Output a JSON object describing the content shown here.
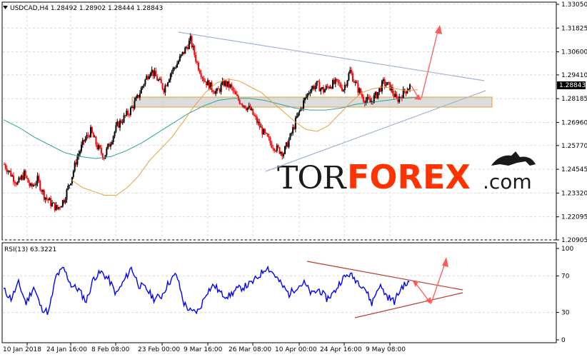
{
  "chart_header": {
    "symbol_line": "USDCAD,H4  1.28492 1.28902 1.28444 1.28843",
    "collapse_arrow_icon": "triangle-down-icon"
  },
  "price_axis": {
    "ticks": [
      "1.33050",
      "1.31825",
      "1.30600",
      "1.29410",
      "1.28185",
      "1.26960",
      "1.25770",
      "1.24545",
      "1.23320",
      "1.22095",
      "1.20905"
    ],
    "current_price": "1.28843"
  },
  "rsi_header": "RSI(13) 63.3221",
  "rsi_axis": {
    "ticks": [
      "100",
      "70",
      "30",
      "0"
    ]
  },
  "time_axis": {
    "labels": [
      "10 Jan 2018",
      "24 Jan 16:00",
      "8 Feb 08:00",
      "23 Feb 00:00",
      "9 Mar 16:00",
      "26 Mar 08:00",
      "10 Apr 00:00",
      "24 Apr 16:00",
      "9 May 08:00"
    ]
  },
  "watermark": {
    "part1": "TOR",
    "part2": "FOREX",
    "part3": ".com",
    "logo_icon": "bull-bear-icon"
  },
  "colors": {
    "candle_up": "#000000",
    "candle_down": "#ff0000",
    "ma_fast": "#e6a23c",
    "ma_slow": "#26a69a",
    "rsi_line": "#0000ff",
    "trendline": "#a0b4d0",
    "rsi_trendline": "#c0392b",
    "arrow": "#ff5a5a",
    "zone": "#d0d0d0",
    "zone_border": "#e6a23c",
    "grid": "#d8d8d8",
    "watermark_dark": "#1a1a1a",
    "watermark_accent": "#ff3300"
  },
  "chart_data": [
    {
      "type": "line",
      "title": "USDCAD,H4  1.28492 1.28902 1.28444 1.28843",
      "x": [
        "10 Jan 2018",
        "24 Jan 16:00",
        "8 Feb 08:00",
        "23 Feb 00:00",
        "9 Mar 16:00",
        "26 Mar 08:00",
        "10 Apr 00:00",
        "24 Apr 16:00",
        "9 May 08:00"
      ],
      "series": [
        {
          "name": "close",
          "values": [
            1.245,
            1.228,
            1.25,
            1.275,
            1.31,
            1.29,
            1.255,
            1.285,
            1.28
          ]
        }
      ],
      "close_path": [
        1.248,
        1.243,
        1.238,
        1.243,
        1.236,
        1.24,
        1.232,
        1.228,
        1.225,
        1.23,
        1.24,
        1.252,
        1.26,
        1.265,
        1.257,
        1.252,
        1.26,
        1.268,
        1.272,
        1.276,
        1.282,
        1.29,
        1.297,
        1.292,
        1.287,
        1.295,
        1.3,
        1.306,
        1.312,
        1.3,
        1.292,
        1.288,
        1.285,
        1.29,
        1.288,
        1.282,
        1.279,
        1.276,
        1.27,
        1.264,
        1.259,
        1.256,
        1.254,
        1.262,
        1.272,
        1.28,
        1.287,
        1.289,
        1.286,
        1.289,
        1.29,
        1.287,
        1.296,
        1.288,
        1.282,
        1.28,
        1.284,
        1.29,
        1.288,
        1.281,
        1.285,
        1.2884
      ],
      "ma_fast": [
        1.24,
        1.236,
        1.234,
        1.232,
        1.232,
        1.236,
        1.242,
        1.25,
        1.256,
        1.262,
        1.27,
        1.278,
        1.285,
        1.29,
        1.292,
        1.291,
        1.288,
        1.285,
        1.28,
        1.275,
        1.27,
        1.266,
        1.265,
        1.268,
        1.274,
        1.28,
        1.285,
        1.287,
        1.288,
        1.287,
        1.286,
        1.2865
      ],
      "ma_slow": [
        1.271,
        1.267,
        1.262,
        1.258,
        1.254,
        1.252,
        1.251,
        1.252,
        1.255,
        1.259,
        1.264,
        1.269,
        1.274,
        1.278,
        1.281,
        1.282,
        1.282,
        1.281,
        1.279,
        1.277,
        1.276,
        1.276,
        1.277,
        1.279,
        1.28,
        1.281,
        1.282,
        1.2825
      ],
      "ylim": [
        1.20905,
        1.3305
      ],
      "xlabel": "",
      "ylabel": ""
    },
    {
      "type": "line",
      "title": "RSI(13) 63.3221",
      "series": [
        {
          "name": "RSI(13)",
          "values": [
            55,
            45,
            62,
            40,
            58,
            35,
            30,
            70,
            78,
            60,
            55,
            42,
            68,
            74,
            66,
            50,
            64,
            79,
            60,
            56,
            45,
            48,
            63,
            72,
            40,
            30,
            32,
            52,
            60,
            50,
            48,
            55,
            58,
            62,
            70,
            80,
            72,
            60,
            50,
            58,
            62,
            50,
            55,
            45,
            52,
            66,
            72,
            65,
            58,
            40,
            60,
            48,
            42,
            58,
            63
          ]
        },
        {
          "name": "",
          "values": [
            63.3
          ]
        }
      ],
      "ylim": [
        0,
        100
      ],
      "levels": [
        70,
        30
      ]
    }
  ]
}
